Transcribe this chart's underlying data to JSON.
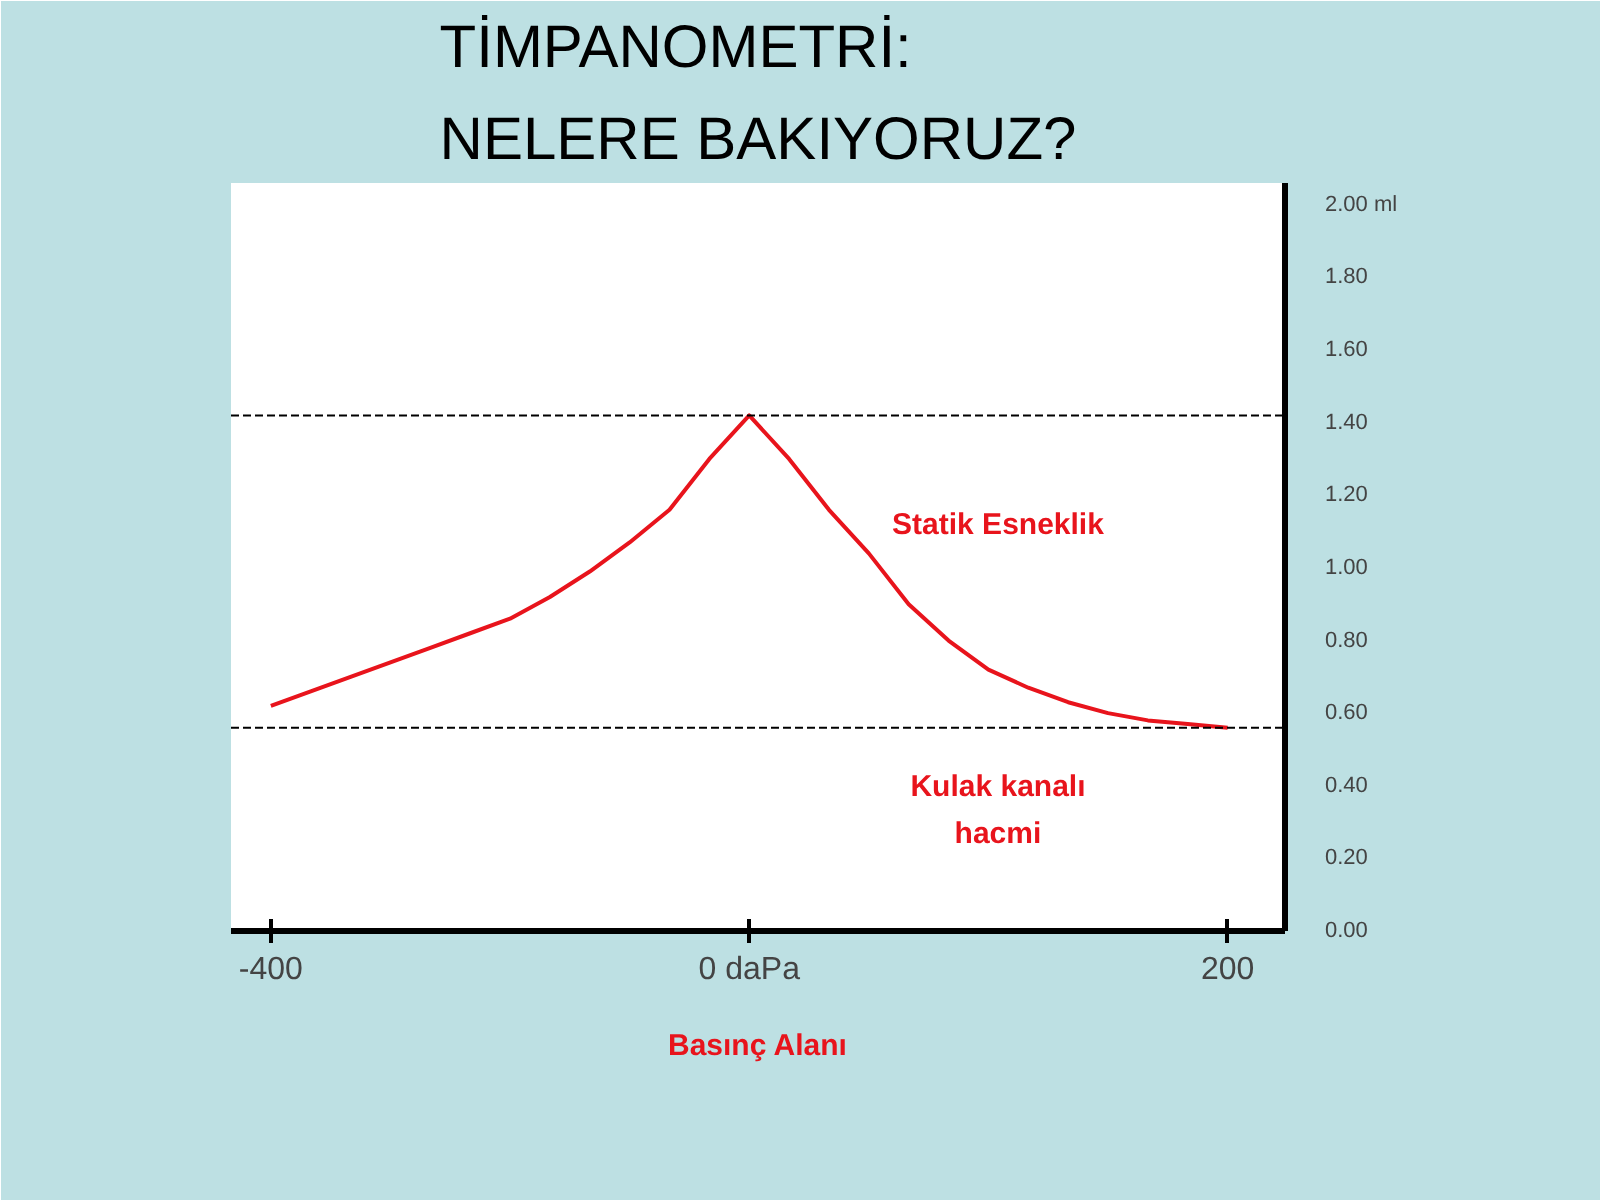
{
  "chart_data": {
    "type": "line",
    "title": "TİMPANOMETRİ:\nNELERE BAKIYORUZ?",
    "xlabel": "Basınç Alanı",
    "categories": [
      "-400",
      null,
      null,
      null,
      null,
      null,
      null,
      null,
      null,
      null,
      null,
      null,
      "0 daPa",
      null,
      null,
      null,
      null,
      null,
      null,
      null,
      null,
      null,
      null,
      null,
      "200"
    ],
    "series": [
      {
        "color": "#e8141c",
        "values": [
          0.62,
          0.66,
          0.7,
          0.74,
          0.78,
          0.82,
          0.86,
          0.92,
          0.99,
          1.07,
          1.16,
          1.3,
          1.42,
          1.3,
          1.16,
          1.04,
          0.9,
          0.8,
          0.72,
          0.67,
          0.63,
          0.6,
          0.58,
          0.57,
          0.56
        ]
      }
    ],
    "ylim": [
      0,
      2.06
    ],
    "yticks": [
      {
        "value": 0,
        "label": "0.00"
      },
      {
        "value": 0.2,
        "label": "0.20"
      },
      {
        "value": 0.4,
        "label": "0.40"
      },
      {
        "value": 0.6,
        "label": "0.60"
      },
      {
        "value": 0.8,
        "label": "0.80"
      },
      {
        "value": 1,
        "label": "1.00"
      },
      {
        "value": 1.2,
        "label": "1.20"
      },
      {
        "value": 1.4,
        "label": "1.40"
      },
      {
        "value": 1.6,
        "label": "1.60"
      },
      {
        "value": 1.8,
        "label": "1.80"
      },
      {
        "value": 2,
        "label": "2.00 ml"
      }
    ],
    "ref_lines": [
      {
        "axis": "y",
        "value": 1.42,
        "line_style": "dashed",
        "color": "#000000"
      },
      {
        "axis": "y",
        "value": 0.56,
        "line_style": "dashed",
        "color": "#000000"
      }
    ],
    "annotations": [
      "Statik Esneklik",
      "Kulak kanalı\nhacmi"
    ],
    "grid": false,
    "marker": "none",
    "line_style": "solid"
  }
}
